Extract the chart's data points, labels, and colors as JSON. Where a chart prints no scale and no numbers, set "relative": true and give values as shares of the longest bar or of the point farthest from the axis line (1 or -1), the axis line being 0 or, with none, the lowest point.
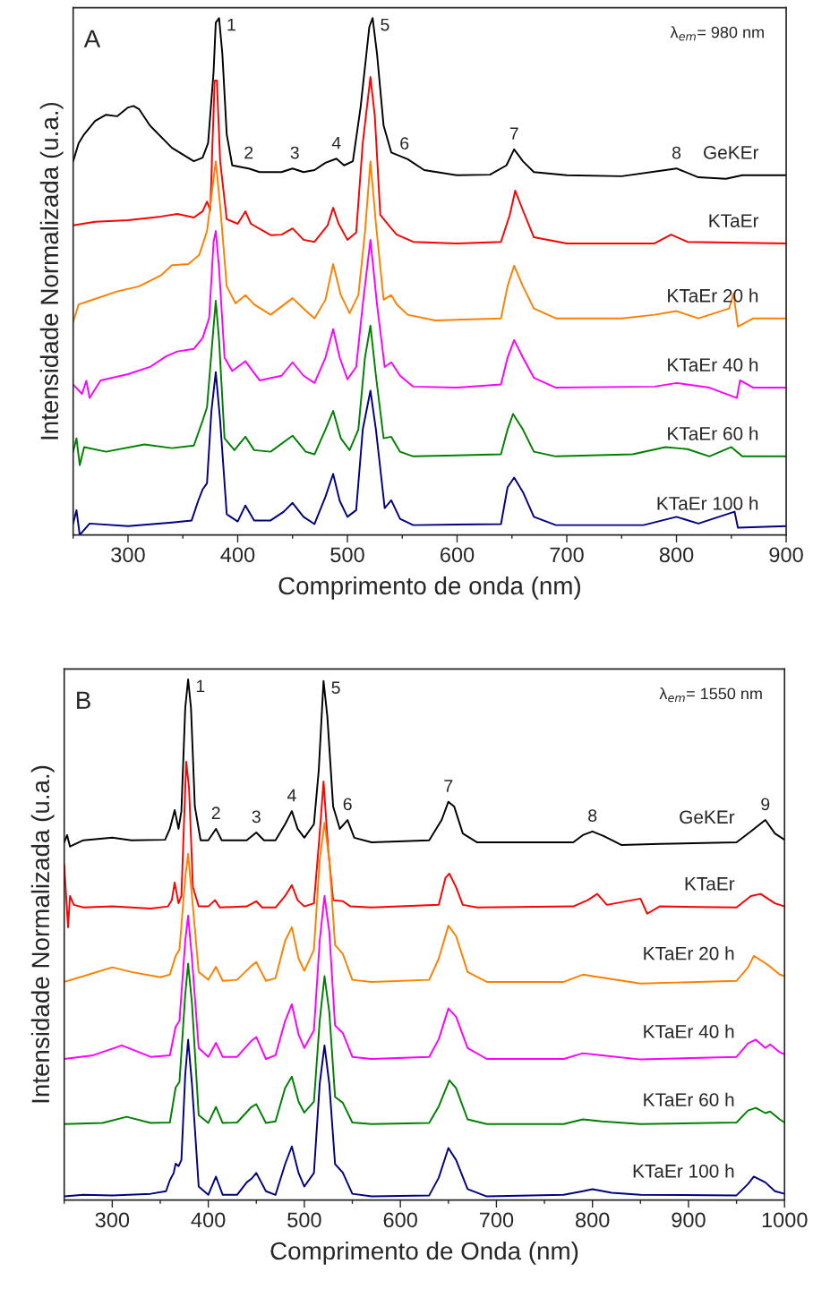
{
  "chart_data": [
    {
      "type": "line",
      "title": "A",
      "xlabel": "Comprimento de onda (nm)",
      "ylabel": "Intensidade Normalizada (u.a.)",
      "relative": true,
      "xlim": [
        250,
        900
      ],
      "xticks": [
        300,
        400,
        500,
        600,
        700,
        800,
        900
      ],
      "legend": false,
      "grid": false,
      "marker": "none",
      "line_style": "solid",
      "annotations": [
        "λ$_{em}$= 980 nm",
        {
          "text": "1",
          "x": 383,
          "y": 1.0
        },
        {
          "text": "2",
          "x": 410,
          "y": 0.709
        },
        {
          "text": "3",
          "x": 452,
          "y": 0.709
        },
        {
          "text": "4",
          "x": 490,
          "y": 0.728
        },
        {
          "text": "5",
          "x": 523,
          "y": 1.0
        },
        {
          "text": "6",
          "x": 552,
          "y": 0.727
        },
        {
          "text": "7",
          "x": 652,
          "y": 0.746
        },
        {
          "text": "8",
          "x": 800,
          "y": 0.709
        }
      ],
      "series": [
        {
          "name": "GeKEr",
          "color": "#000000",
          "x": [
            250,
            255,
            260,
            270,
            280,
            290,
            300,
            305,
            310,
            320,
            340,
            360,
            368,
            373,
            378,
            380,
            383,
            386,
            390,
            395,
            410,
            420,
            440,
            450,
            460,
            470,
            480,
            490,
            497,
            505,
            512,
            520,
            523,
            527,
            533,
            540,
            555,
            570,
            600,
            630,
            645,
            652,
            660,
            670,
            700,
            750,
            790,
            800,
            820,
            845,
            860,
            900
          ],
          "values": [
            0.723,
            0.758,
            0.775,
            0.801,
            0.813,
            0.81,
            0.827,
            0.83,
            0.824,
            0.792,
            0.749,
            0.723,
            0.73,
            0.758,
            0.896,
            0.991,
            1.0,
            0.931,
            0.775,
            0.715,
            0.709,
            0.702,
            0.702,
            0.709,
            0.702,
            0.706,
            0.72,
            0.728,
            0.715,
            0.723,
            0.827,
            0.983,
            1.0,
            0.931,
            0.792,
            0.74,
            0.727,
            0.706,
            0.696,
            0.697,
            0.715,
            0.746,
            0.723,
            0.702,
            0.696,
            0.694,
            0.706,
            0.709,
            0.692,
            0.689,
            0.696,
            0.696
          ]
        },
        {
          "name": "KTaEr",
          "color": "#ff0000",
          "x": [
            250,
            270,
            300,
            330,
            345,
            360,
            368,
            372,
            375,
            377,
            379,
            381,
            384,
            390,
            400,
            407,
            412,
            430,
            440,
            450,
            460,
            470,
            482,
            487,
            492,
            500,
            508,
            514,
            521,
            525,
            530,
            540,
            545,
            560,
            600,
            640,
            648,
            653,
            660,
            670,
            700,
            780,
            795,
            810,
            900
          ],
          "values": [
            0.599,
            0.606,
            0.609,
            0.616,
            0.621,
            0.614,
            0.626,
            0.645,
            0.628,
            0.758,
            0.879,
            0.879,
            0.723,
            0.611,
            0.602,
            0.626,
            0.602,
            0.58,
            0.581,
            0.593,
            0.571,
            0.567,
            0.599,
            0.633,
            0.602,
            0.571,
            0.585,
            0.758,
            0.886,
            0.81,
            0.619,
            0.593,
            0.581,
            0.567,
            0.564,
            0.567,
            0.619,
            0.666,
            0.628,
            0.576,
            0.564,
            0.564,
            0.581,
            0.567,
            0.564
          ]
        },
        {
          "name": "KTaEr 20 h",
          "color": "#ff8000",
          "x": [
            250,
            255,
            265,
            290,
            310,
            330,
            340,
            355,
            365,
            372,
            377,
            380,
            384,
            390,
            398,
            407,
            415,
            430,
            450,
            460,
            470,
            480,
            487,
            494,
            502,
            510,
            516,
            521,
            526,
            533,
            540,
            545,
            555,
            580,
            640,
            646,
            652,
            660,
            670,
            690,
            750,
            780,
            800,
            820,
            848,
            852,
            856,
            870,
            900
          ],
          "values": [
            0.412,
            0.446,
            0.453,
            0.471,
            0.481,
            0.502,
            0.522,
            0.524,
            0.542,
            0.588,
            0.671,
            0.723,
            0.637,
            0.481,
            0.448,
            0.464,
            0.446,
            0.426,
            0.458,
            0.438,
            0.419,
            0.455,
            0.524,
            0.464,
            0.429,
            0.464,
            0.585,
            0.723,
            0.602,
            0.455,
            0.464,
            0.446,
            0.426,
            0.415,
            0.419,
            0.481,
            0.521,
            0.481,
            0.438,
            0.419,
            0.419,
            0.426,
            0.433,
            0.419,
            0.438,
            0.467,
            0.403,
            0.419,
            0.419
          ]
        },
        {
          "name": "KTaEr 40 h",
          "color": "#ff00ff",
          "x": [
            250,
            258,
            262,
            265,
            275,
            300,
            320,
            335,
            345,
            360,
            368,
            374,
            378,
            380,
            383,
            388,
            395,
            407,
            420,
            440,
            450,
            460,
            470,
            480,
            487,
            493,
            500,
            508,
            514,
            521,
            527,
            534,
            540,
            548,
            560,
            600,
            640,
            646,
            652,
            660,
            670,
            690,
            780,
            800,
            830,
            855,
            858,
            870,
            900
          ],
          "values": [
            0.291,
            0.273,
            0.298,
            0.265,
            0.299,
            0.311,
            0.325,
            0.346,
            0.355,
            0.36,
            0.381,
            0.42,
            0.567,
            0.588,
            0.516,
            0.343,
            0.317,
            0.336,
            0.299,
            0.308,
            0.334,
            0.308,
            0.294,
            0.343,
            0.398,
            0.343,
            0.301,
            0.325,
            0.446,
            0.571,
            0.446,
            0.325,
            0.334,
            0.308,
            0.287,
            0.285,
            0.291,
            0.343,
            0.377,
            0.343,
            0.304,
            0.285,
            0.287,
            0.294,
            0.285,
            0.265,
            0.299,
            0.285,
            0.285
          ]
        },
        {
          "name": "KTaEr 60 h",
          "color": "#008000",
          "x": [
            250,
            253,
            256,
            260,
            280,
            315,
            340,
            360,
            368,
            372,
            377,
            380,
            383,
            388,
            397,
            407,
            415,
            430,
            450,
            462,
            470,
            480,
            487,
            494,
            502,
            510,
            516,
            521,
            526,
            533,
            540,
            548,
            560,
            640,
            646,
            651,
            660,
            670,
            690,
            760,
            790,
            810,
            830,
            850,
            860,
            900
          ],
          "values": [
            0.161,
            0.187,
            0.135,
            0.17,
            0.161,
            0.175,
            0.168,
            0.173,
            0.221,
            0.247,
            0.377,
            0.453,
            0.377,
            0.187,
            0.164,
            0.19,
            0.164,
            0.161,
            0.192,
            0.161,
            0.156,
            0.204,
            0.24,
            0.187,
            0.164,
            0.204,
            0.343,
            0.405,
            0.308,
            0.187,
            0.19,
            0.161,
            0.152,
            0.156,
            0.204,
            0.234,
            0.204,
            0.161,
            0.152,
            0.156,
            0.17,
            0.166,
            0.152,
            0.17,
            0.152,
            0.152
          ]
        },
        {
          "name": "KTaEr 100 h",
          "color": "#000080",
          "x": [
            250,
            253,
            256,
            265,
            300,
            340,
            358,
            364,
            368,
            372,
            376,
            380,
            384,
            390,
            400,
            407,
            415,
            430,
            442,
            450,
            460,
            470,
            480,
            487,
            493,
            500,
            508,
            514,
            521,
            526,
            534,
            540,
            548,
            560,
            640,
            646,
            652,
            660,
            670,
            690,
            770,
            800,
            820,
            853,
            856,
            900
          ],
          "values": [
            0.022,
            0.048,
            0.0,
            0.022,
            0.017,
            0.024,
            0.028,
            0.066,
            0.088,
            0.1,
            0.239,
            0.315,
            0.221,
            0.04,
            0.026,
            0.057,
            0.028,
            0.028,
            0.045,
            0.062,
            0.035,
            0.021,
            0.074,
            0.118,
            0.066,
            0.035,
            0.048,
            0.204,
            0.279,
            0.204,
            0.052,
            0.067,
            0.031,
            0.019,
            0.021,
            0.092,
            0.111,
            0.083,
            0.035,
            0.019,
            0.019,
            0.035,
            0.022,
            0.045,
            0.014,
            0.017
          ]
        }
      ]
    },
    {
      "type": "line",
      "title": "B",
      "xlabel": "Comprimento de Onda (nm)",
      "ylabel": "Intensidade Normalizada (u.a.)",
      "relative": true,
      "xlim": [
        250,
        1000
      ],
      "xticks": [
        300,
        400,
        500,
        600,
        700,
        800,
        900,
        1000
      ],
      "legend": false,
      "grid": false,
      "marker": "none",
      "line_style": "solid",
      "annotations": [
        "λ$_{em}$= 1550 nm",
        {
          "text": "1",
          "x": 379,
          "y": 1.0
        },
        {
          "text": "2",
          "x": 408,
          "y": 0.713
        },
        {
          "text": "3",
          "x": 450,
          "y": 0.706
        },
        {
          "text": "4",
          "x": 487,
          "y": 0.747
        },
        {
          "text": "5",
          "x": 520,
          "y": 0.997
        },
        {
          "text": "6",
          "x": 545,
          "y": 0.73
        },
        {
          "text": "7",
          "x": 650,
          "y": 0.765
        },
        {
          "text": "8",
          "x": 800,
          "y": 0.708
        },
        {
          "text": "9",
          "x": 980,
          "y": 0.73
        }
      ],
      "series": [
        {
          "name": "GeKEr",
          "color": "#000000",
          "x": [
            250,
            253,
            256,
            270,
            300,
            320,
            355,
            360,
            365,
            369,
            372,
            376,
            379,
            382,
            386,
            392,
            400,
            408,
            414,
            440,
            450,
            458,
            470,
            480,
            487,
            493,
            500,
            510,
            515,
            520,
            524,
            530,
            537,
            545,
            552,
            570,
            630,
            643,
            650,
            656,
            665,
            680,
            780,
            790,
            800,
            812,
            830,
            870,
            950,
            965,
            980,
            990,
            1000
          ],
          "values": [
            0.687,
            0.701,
            0.679,
            0.691,
            0.696,
            0.691,
            0.692,
            0.713,
            0.749,
            0.713,
            0.747,
            0.945,
            1.0,
            0.945,
            0.756,
            0.691,
            0.691,
            0.713,
            0.691,
            0.691,
            0.706,
            0.691,
            0.691,
            0.722,
            0.747,
            0.713,
            0.696,
            0.722,
            0.825,
            0.997,
            0.928,
            0.756,
            0.713,
            0.73,
            0.696,
            0.687,
            0.691,
            0.73,
            0.765,
            0.756,
            0.704,
            0.687,
            0.687,
            0.701,
            0.708,
            0.699,
            0.682,
            0.684,
            0.687,
            0.708,
            0.73,
            0.704,
            0.692
          ]
        },
        {
          "name": "KTaEr",
          "color": "#ff0000",
          "x": [
            250,
            252,
            254,
            256,
            260,
            270,
            300,
            340,
            358,
            362,
            365,
            369,
            372,
            377,
            380,
            384,
            390,
            400,
            407,
            412,
            440,
            450,
            456,
            470,
            480,
            487,
            493,
            500,
            510,
            516,
            520,
            525,
            530,
            540,
            548,
            570,
            640,
            647,
            651,
            658,
            665,
            680,
            780,
            795,
            805,
            815,
            850,
            857,
            870,
            950,
            965,
            975,
            990,
            1000
          ],
          "values": [
            0.644,
            0.584,
            0.524,
            0.584,
            0.567,
            0.562,
            0.564,
            0.56,
            0.564,
            0.576,
            0.61,
            0.57,
            0.584,
            0.842,
            0.79,
            0.601,
            0.564,
            0.564,
            0.576,
            0.562,
            0.564,
            0.574,
            0.562,
            0.562,
            0.584,
            0.605,
            0.576,
            0.564,
            0.57,
            0.704,
            0.804,
            0.67,
            0.576,
            0.574,
            0.564,
            0.562,
            0.567,
            0.619,
            0.627,
            0.601,
            0.567,
            0.562,
            0.564,
            0.576,
            0.588,
            0.567,
            0.579,
            0.55,
            0.564,
            0.562,
            0.584,
            0.588,
            0.57,
            0.564
          ]
        },
        {
          "name": "KTaEr 20 h",
          "color": "#ff8000",
          "x": [
            250,
            270,
            300,
            320,
            350,
            360,
            366,
            370,
            376,
            379,
            383,
            390,
            400,
            408,
            415,
            430,
            445,
            450,
            460,
            470,
            480,
            487,
            494,
            500,
            510,
            516,
            521,
            526,
            532,
            540,
            550,
            570,
            630,
            640,
            650,
            658,
            670,
            690,
            770,
            790,
            800,
            850,
            950,
            962,
            968,
            980,
            985,
            995,
            1000
          ],
          "values": [
            0.419,
            0.43,
            0.447,
            0.438,
            0.428,
            0.433,
            0.469,
            0.481,
            0.619,
            0.665,
            0.584,
            0.438,
            0.423,
            0.448,
            0.421,
            0.423,
            0.45,
            0.457,
            0.421,
            0.426,
            0.498,
            0.524,
            0.464,
            0.44,
            0.481,
            0.653,
            0.725,
            0.653,
            0.49,
            0.473,
            0.423,
            0.419,
            0.423,
            0.464,
            0.527,
            0.507,
            0.438,
            0.419,
            0.419,
            0.433,
            0.43,
            0.416,
            0.421,
            0.447,
            0.469,
            0.455,
            0.448,
            0.433,
            0.43
          ]
        },
        {
          "name": "KTaEr 40 h",
          "color": "#ff00ff",
          "x": [
            250,
            280,
            310,
            340,
            360,
            366,
            370,
            376,
            379,
            383,
            390,
            400,
            408,
            415,
            430,
            445,
            450,
            460,
            470,
            480,
            487,
            494,
            500,
            510,
            516,
            521,
            526,
            532,
            540,
            550,
            570,
            630,
            640,
            650,
            658,
            670,
            690,
            770,
            790,
            810,
            850,
            950,
            962,
            970,
            980,
            985,
            995,
            1000
          ],
          "values": [
            0.271,
            0.278,
            0.297,
            0.275,
            0.278,
            0.333,
            0.344,
            0.498,
            0.546,
            0.464,
            0.292,
            0.275,
            0.302,
            0.275,
            0.275,
            0.306,
            0.313,
            0.271,
            0.278,
            0.344,
            0.376,
            0.318,
            0.292,
            0.326,
            0.498,
            0.584,
            0.515,
            0.335,
            0.321,
            0.275,
            0.271,
            0.275,
            0.309,
            0.368,
            0.352,
            0.292,
            0.271,
            0.271,
            0.282,
            0.278,
            0.27,
            0.275,
            0.301,
            0.308,
            0.292,
            0.299,
            0.284,
            0.28
          ]
        },
        {
          "name": "KTaEr 60 h",
          "color": "#008000",
          "x": [
            250,
            290,
            315,
            340,
            360,
            366,
            370,
            376,
            379,
            383,
            390,
            400,
            408,
            415,
            430,
            445,
            450,
            460,
            470,
            480,
            487,
            494,
            500,
            510,
            516,
            521,
            526,
            532,
            540,
            550,
            570,
            630,
            640,
            651,
            658,
            670,
            690,
            770,
            790,
            810,
            850,
            950,
            962,
            970,
            980,
            985,
            995,
            1000
          ],
          "values": [
            0.146,
            0.148,
            0.16,
            0.148,
            0.149,
            0.216,
            0.227,
            0.395,
            0.454,
            0.378,
            0.163,
            0.148,
            0.179,
            0.148,
            0.149,
            0.179,
            0.184,
            0.148,
            0.151,
            0.215,
            0.237,
            0.189,
            0.168,
            0.189,
            0.344,
            0.43,
            0.361,
            0.198,
            0.187,
            0.149,
            0.146,
            0.148,
            0.18,
            0.23,
            0.215,
            0.155,
            0.146,
            0.146,
            0.155,
            0.151,
            0.146,
            0.149,
            0.172,
            0.177,
            0.167,
            0.17,
            0.155,
            0.149
          ]
        },
        {
          "name": "KTaEr 100 h",
          "color": "#000080",
          "x": [
            250,
            270,
            300,
            340,
            356,
            360,
            364,
            366,
            369,
            372,
            376,
            379,
            383,
            390,
            400,
            408,
            415,
            430,
            440,
            445,
            450,
            460,
            470,
            480,
            487,
            494,
            500,
            510,
            516,
            521,
            526,
            532,
            540,
            550,
            570,
            630,
            640,
            650,
            658,
            670,
            690,
            770,
            790,
            800,
            820,
            850,
            950,
            962,
            968,
            980,
            990,
            1000
          ],
          "values": [
            0.007,
            0.01,
            0.009,
            0.012,
            0.017,
            0.038,
            0.052,
            0.07,
            0.065,
            0.077,
            0.241,
            0.308,
            0.223,
            0.026,
            0.01,
            0.045,
            0.01,
            0.01,
            0.034,
            0.041,
            0.052,
            0.017,
            0.01,
            0.069,
            0.103,
            0.052,
            0.026,
            0.052,
            0.223,
            0.297,
            0.223,
            0.069,
            0.053,
            0.012,
            0.007,
            0.009,
            0.043,
            0.1,
            0.077,
            0.021,
            0.007,
            0.01,
            0.017,
            0.021,
            0.014,
            0.01,
            0.009,
            0.031,
            0.045,
            0.034,
            0.017,
            0.012
          ]
        }
      ]
    }
  ]
}
